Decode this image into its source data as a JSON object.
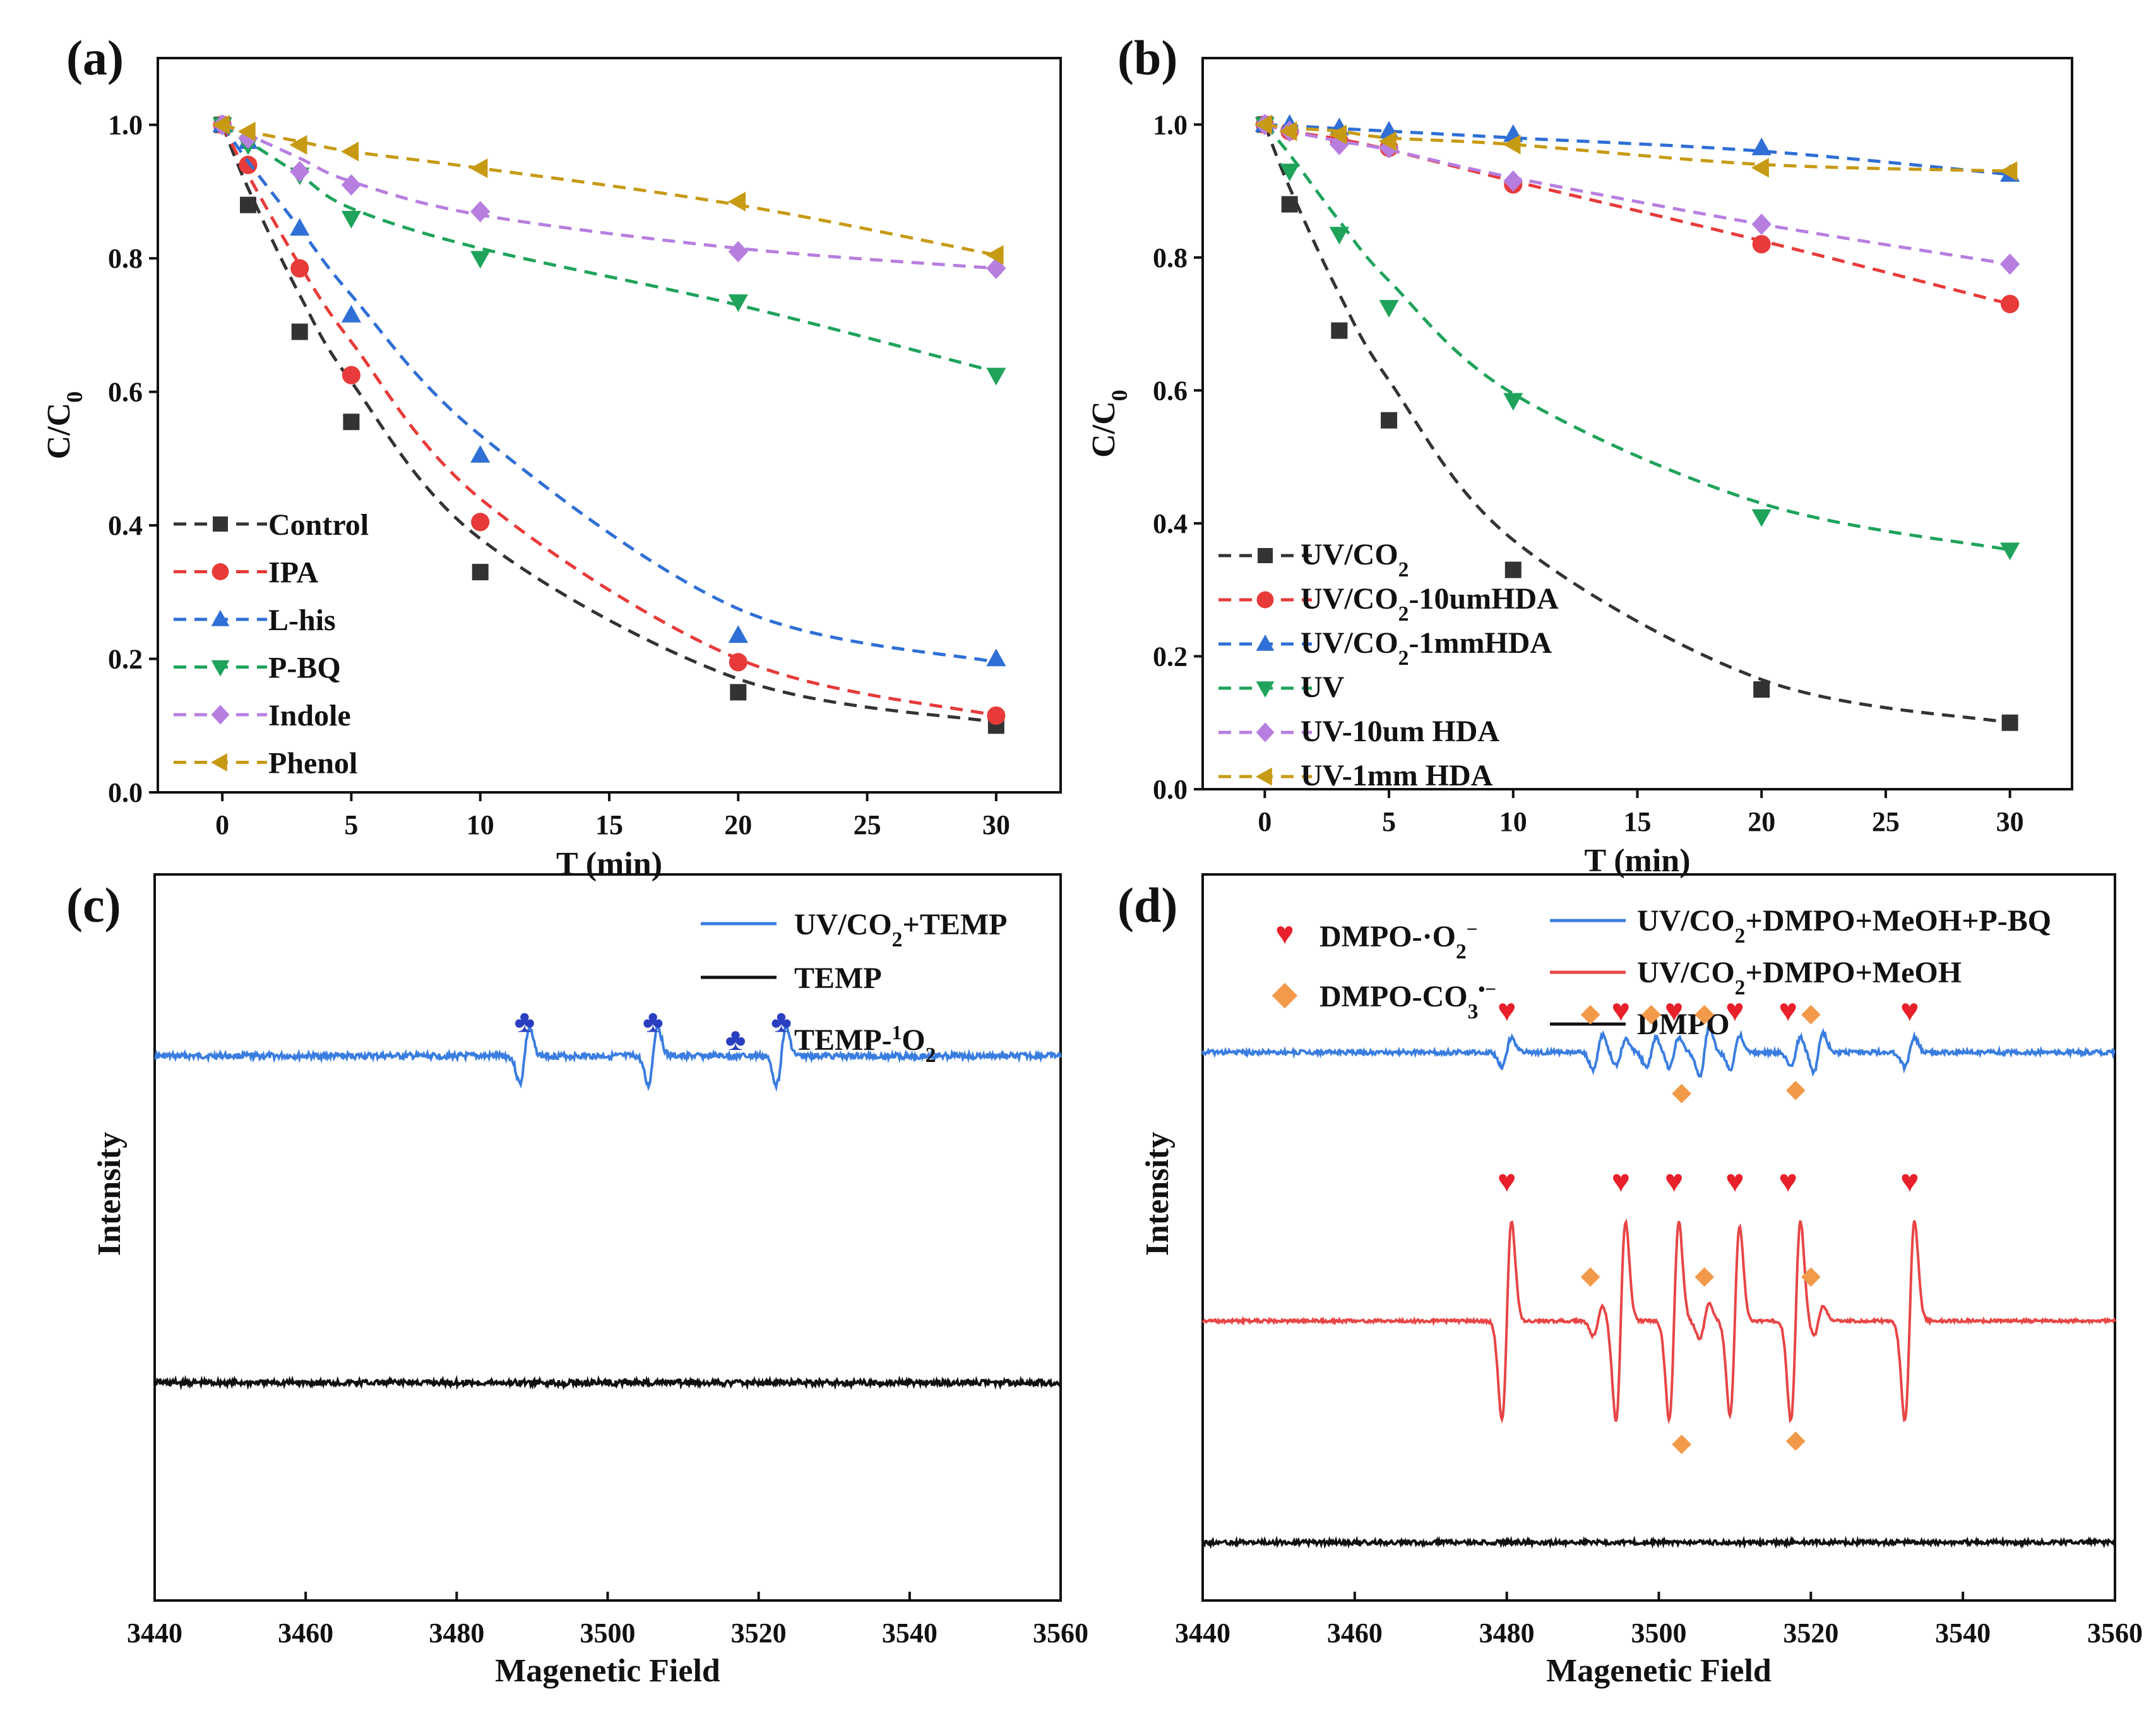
{
  "chart_data": [
    {
      "panel": "(a)",
      "type": "line",
      "xlabel": "T (min)",
      "ylabel": "C/C",
      "ylabel_sub": "0",
      "xlim": [
        -2.5,
        32.5
      ],
      "ylim": [
        0,
        1.1
      ],
      "xticks": [
        0,
        5,
        10,
        15,
        20,
        25,
        30
      ],
      "yticks": [
        0.0,
        0.2,
        0.4,
        0.6,
        0.8,
        1.0
      ],
      "legend_position": "bottom-left",
      "x": [
        0,
        1,
        3,
        5,
        10,
        20,
        30
      ],
      "series": [
        {
          "name": "Control",
          "color": "#333333",
          "marker": "square",
          "values": [
            1.0,
            0.88,
            0.69,
            0.555,
            0.33,
            0.15,
            0.1
          ],
          "fit": [
            1.0,
            0.905,
            0.745,
            0.615,
            0.38,
            0.17,
            0.105
          ]
        },
        {
          "name": "IPA",
          "color": "#e83a3a",
          "marker": "circle",
          "values": [
            1.0,
            0.94,
            0.785,
            0.625,
            0.405,
            0.195,
            0.115
          ],
          "fit": [
            1.0,
            0.925,
            0.79,
            0.675,
            0.44,
            0.2,
            0.115
          ]
        },
        {
          "name": "L-his",
          "color": "#2f6fd6",
          "marker": "triangle-up",
          "values": [
            1.0,
            0.975,
            0.845,
            0.715,
            0.505,
            0.235,
            0.2
          ],
          "fit": [
            1.0,
            0.945,
            0.845,
            0.745,
            0.535,
            0.275,
            0.195
          ]
        },
        {
          "name": "P-BQ",
          "color": "#1fa35b",
          "marker": "triangle-down",
          "values": [
            1.0,
            0.97,
            0.925,
            0.86,
            0.8,
            0.735,
            0.625
          ],
          "fit": [
            1.0,
            0.975,
            0.925,
            0.875,
            0.815,
            0.73,
            0.63
          ]
        },
        {
          "name": "Indole",
          "color": "#b77ee0",
          "marker": "diamond",
          "values": [
            1.0,
            0.98,
            0.93,
            0.91,
            0.87,
            0.81,
            0.785
          ],
          "fit": [
            1.0,
            0.985,
            0.95,
            0.915,
            0.865,
            0.815,
            0.785
          ]
        },
        {
          "name": "Phenol",
          "color": "#c79a14",
          "marker": "triangle-left",
          "values": [
            1.0,
            0.99,
            0.97,
            0.96,
            0.935,
            0.885,
            0.805
          ],
          "fit": [
            1.0,
            0.99,
            0.975,
            0.96,
            0.935,
            0.88,
            0.805
          ]
        }
      ]
    },
    {
      "panel": "(b)",
      "type": "line",
      "xlabel": "T (min)",
      "ylabel": "C/C",
      "ylabel_sub": "0",
      "xlim": [
        -2.5,
        32.5
      ],
      "ylim": [
        0,
        1.1
      ],
      "xticks": [
        0,
        5,
        10,
        15,
        20,
        25,
        30
      ],
      "yticks": [
        0.0,
        0.2,
        0.4,
        0.6,
        0.8,
        1.0
      ],
      "legend_position": "bottom-left",
      "x": [
        0,
        1,
        3,
        5,
        10,
        20,
        30
      ],
      "series": [
        {
          "name": "UV/CO",
          "name_sub": "2",
          "name_tail": "",
          "color": "#333333",
          "marker": "square",
          "values": [
            1.0,
            0.88,
            0.69,
            0.555,
            0.33,
            0.15,
            0.1
          ],
          "fit": [
            1.0,
            0.905,
            0.745,
            0.615,
            0.375,
            0.165,
            0.1
          ]
        },
        {
          "name": "UV/CO",
          "name_sub": "2",
          "name_tail": "-10umHDA",
          "color": "#e83a3a",
          "marker": "circle",
          "values": [
            1.0,
            0.99,
            0.975,
            0.965,
            0.91,
            0.82,
            0.73
          ],
          "fit": [
            1.0,
            0.99,
            0.978,
            0.962,
            0.915,
            0.825,
            0.73
          ]
        },
        {
          "name": "UV/CO",
          "name_sub": "2",
          "name_tail": "-1mmHDA",
          "color": "#2f6fd6",
          "marker": "triangle-up",
          "values": [
            1.0,
            1.0,
            0.995,
            0.99,
            0.985,
            0.965,
            0.925
          ],
          "fit": [
            1.0,
            0.998,
            0.994,
            0.99,
            0.98,
            0.96,
            0.925
          ]
        },
        {
          "name": "UV",
          "name_sub": "",
          "name_tail": "",
          "color": "#1fa35b",
          "marker": "triangle-down",
          "values": [
            1.0,
            0.93,
            0.835,
            0.725,
            0.585,
            0.41,
            0.36
          ],
          "fit": [
            1.0,
            0.955,
            0.855,
            0.765,
            0.595,
            0.43,
            0.36
          ]
        },
        {
          "name": "UV-10um HDA",
          "name_sub": "",
          "name_tail": "",
          "color": "#b77ee0",
          "marker": "diamond",
          "values": [
            1.0,
            0.99,
            0.97,
            0.965,
            0.915,
            0.85,
            0.79
          ],
          "fit": [
            1.0,
            0.99,
            0.975,
            0.962,
            0.92,
            0.85,
            0.79
          ]
        },
        {
          "name": "UV-1mm HDA",
          "name_sub": "",
          "name_tail": "",
          "color": "#c79a14",
          "marker": "triangle-left",
          "values": [
            1.0,
            0.99,
            0.985,
            0.975,
            0.97,
            0.935,
            0.93
          ],
          "fit": [
            1.0,
            0.995,
            0.99,
            0.98,
            0.97,
            0.94,
            0.93
          ]
        }
      ]
    },
    {
      "panel": "(c)",
      "type": "line",
      "xlabel": "Magenetic Field",
      "ylabel": "Intensity",
      "xlim": [
        3440,
        3560
      ],
      "xticks": [
        3440,
        3460,
        3480,
        3500,
        3520,
        3540,
        3560
      ],
      "legend_position": "top-right",
      "series": [
        {
          "name": "UV/CO",
          "name_sub": "2",
          "name_tail": "+TEMP",
          "color": "#3a7de0",
          "baseline": 0.25,
          "peaks": [
            {
              "x": 3489,
              "amp": 0.055
            },
            {
              "x": 3506,
              "amp": 0.06
            },
            {
              "x": 3523,
              "amp": 0.058
            }
          ],
          "noise": 0.004
        },
        {
          "name": "TEMP",
          "name_sub": "",
          "name_tail": "",
          "color": "#111111",
          "baseline": 0.7,
          "peaks": [],
          "noise": 0.004
        }
      ],
      "markers": [
        {
          "name": "TEMP-",
          "sup": "1",
          "tail": "O",
          "sub": "2",
          "symbol": "♣",
          "color": "#2a3fc0",
          "x": [
            3489,
            3506,
            3523
          ]
        }
      ]
    },
    {
      "panel": "(d)",
      "type": "line",
      "xlabel": "Magenetic Field",
      "ylabel": "Intensity",
      "xlim": [
        3440,
        3560
      ],
      "xticks": [
        3440,
        3460,
        3480,
        3500,
        3520,
        3540,
        3560
      ],
      "legend_position": "top",
      "series": [
        {
          "name": "UV/CO",
          "name_sub": "2",
          "name_tail": "+DMPO+MeOH+P-BQ",
          "color": "#3a7de0",
          "baseline": 0.245,
          "peaks": [
            {
              "x": 3480,
              "amp": 0.03
            },
            {
              "x": 3492,
              "amp": 0.035
            },
            {
              "x": 3495,
              "amp": 0.025
            },
            {
              "x": 3499,
              "amp": 0.03
            },
            {
              "x": 3502,
              "amp": 0.03
            },
            {
              "x": 3506,
              "amp": 0.05
            },
            {
              "x": 3510,
              "amp": 0.035
            },
            {
              "x": 3518,
              "amp": 0.03
            },
            {
              "x": 3521,
              "amp": 0.04
            },
            {
              "x": 3533,
              "amp": 0.03
            }
          ],
          "noise": 0.003
        },
        {
          "name": "UV/CO",
          "name_sub": "2",
          "name_tail": "+DMPO+MeOH",
          "color": "#e84545",
          "baseline": 0.615,
          "peaks": [
            {
              "x": 3480,
              "amp": 0.2
            },
            {
              "x": 3495,
              "amp": 0.2
            },
            {
              "x": 3502,
              "amp": 0.2
            },
            {
              "x": 3510,
              "amp": 0.19
            },
            {
              "x": 3518,
              "amp": 0.2
            },
            {
              "x": 3533,
              "amp": 0.2
            },
            {
              "x": 3492,
              "amp": 0.03
            },
            {
              "x": 3506,
              "amp": 0.035
            },
            {
              "x": 3521,
              "amp": 0.03
            }
          ],
          "noise": 0.002
        },
        {
          "name": "DMPO",
          "name_sub": "",
          "name_tail": "",
          "color": "#111111",
          "baseline": 0.92,
          "peaks": [],
          "noise": 0.003
        }
      ],
      "markers": [
        {
          "name": "DMPO-·O",
          "sub": "2",
          "sup": "−",
          "symbol": "♥",
          "color": "#e8202a",
          "x": [
            3480,
            3495,
            3502,
            3510,
            3517,
            3533
          ]
        },
        {
          "name": "DMPO-CO",
          "sub": "3",
          "sup": "•−",
          "symbol": "◆",
          "color": "#f29a4a",
          "x": [
            3491,
            3499,
            3506,
            3520,
            3503,
            3518
          ]
        }
      ]
    }
  ]
}
